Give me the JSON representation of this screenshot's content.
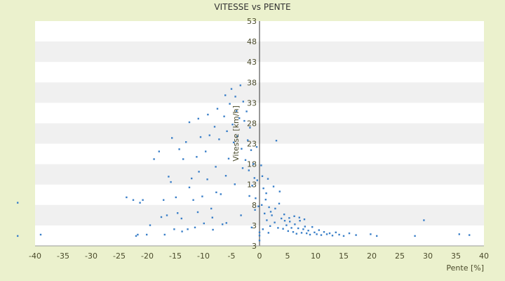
{
  "chart_data": {
    "type": "scatter",
    "title": "VITESSE vs PENTE",
    "xlabel": "Pente [%]",
    "ylabel": "Vitesse [km/h]",
    "xlim": [
      -40,
      40
    ],
    "ylim": [
      3,
      53
    ],
    "x_ticks": [
      "-40",
      "-35",
      "-30",
      "-25",
      "-20",
      "-15",
      "-10",
      "-5",
      "0",
      "5",
      "10",
      "15",
      "20",
      "25",
      "30",
      "35",
      "40"
    ],
    "y_ticks": [
      "53",
      "48",
      "43",
      "38",
      "33",
      "28",
      "23",
      "18",
      "13",
      "8",
      "3",
      "3"
    ],
    "grid": "alternating horizontal bands",
    "legend": "none",
    "colors": {
      "point": "#3a7fc8",
      "plot_bg": "#ffffff",
      "band": "#f0f0f0",
      "page_bg": "#ebf1cd"
    },
    "points": [
      [
        -43.1,
        12.6
      ],
      [
        -43.1,
        5.2
      ],
      [
        -39.0,
        5.5
      ],
      [
        -23.7,
        13.8
      ],
      [
        -22.5,
        13.2
      ],
      [
        -22.0,
        5.2
      ],
      [
        -21.7,
        5.5
      ],
      [
        -21.3,
        12.6
      ],
      [
        -20.8,
        13.2
      ],
      [
        -20.1,
        5.5
      ],
      [
        -19.5,
        7.6
      ],
      [
        -18.8,
        22.3
      ],
      [
        -17.9,
        24.0
      ],
      [
        -17.5,
        9.4
      ],
      [
        -17.1,
        13.2
      ],
      [
        -16.9,
        5.5
      ],
      [
        -16.5,
        9.8
      ],
      [
        -16.2,
        18.4
      ],
      [
        -15.8,
        17.2
      ],
      [
        -15.6,
        27.0
      ],
      [
        -15.2,
        6.7
      ],
      [
        -14.9,
        13.8
      ],
      [
        -14.6,
        10.3
      ],
      [
        -14.3,
        24.5
      ],
      [
        -13.8,
        6.2
      ],
      [
        -13.6,
        22.3
      ],
      [
        -13.1,
        26.1
      ],
      [
        -12.8,
        6.7
      ],
      [
        -12.5,
        30.5
      ],
      [
        -12.1,
        18.0
      ],
      [
        -11.8,
        13.2
      ],
      [
        -11.5,
        7.1
      ],
      [
        -11.2,
        22.8
      ],
      [
        -10.9,
        31.3
      ],
      [
        -10.5,
        27.2
      ],
      [
        -10.2,
        14.0
      ],
      [
        -9.9,
        8.0
      ],
      [
        -9.6,
        24.0
      ],
      [
        -9.2,
        32.2
      ],
      [
        -8.9,
        27.6
      ],
      [
        -8.6,
        11.3
      ],
      [
        -8.3,
        6.6
      ],
      [
        -8.0,
        29.5
      ],
      [
        -7.8,
        20.6
      ],
      [
        -7.5,
        33.5
      ],
      [
        -7.2,
        26.7
      ],
      [
        -6.9,
        14.5
      ],
      [
        -6.6,
        7.8
      ],
      [
        -6.3,
        31.8
      ],
      [
        -6.1,
        36.5
      ],
      [
        -5.8,
        28.5
      ],
      [
        -5.5,
        22.4
      ],
      [
        -5.3,
        34.6
      ],
      [
        -5.0,
        37.9
      ],
      [
        -4.8,
        30.0
      ],
      [
        -4.6,
        26.0
      ],
      [
        -4.3,
        36.2
      ],
      [
        -4.1,
        33.0
      ],
      [
        -3.9,
        27.4
      ],
      [
        -3.6,
        31.4
      ],
      [
        -3.4,
        38.7
      ],
      [
        -3.2,
        24.6
      ],
      [
        -2.9,
        35.1
      ],
      [
        -2.7,
        30.8
      ],
      [
        -2.5,
        22.1
      ],
      [
        -2.3,
        32.9
      ],
      [
        -2.1,
        26.5
      ],
      [
        -1.9,
        19.8
      ],
      [
        -1.7,
        29.3
      ],
      [
        -1.5,
        24.3
      ],
      [
        -1.3,
        16.4
      ],
      [
        -1.1,
        21.2
      ],
      [
        -0.9,
        18.1
      ],
      [
        -0.7,
        13.6
      ],
      [
        -0.5,
        25.0
      ],
      [
        -0.4,
        17.6
      ],
      [
        -0.2,
        11.8
      ],
      [
        0.0,
        5.3
      ],
      [
        0.0,
        4.2
      ],
      [
        0.0,
        6.0
      ],
      [
        0.3,
        20.9
      ],
      [
        0.5,
        18.5
      ],
      [
        0.7,
        15.8
      ],
      [
        0.9,
        10.2
      ],
      [
        1.1,
        13.3
      ],
      [
        1.3,
        8.7
      ],
      [
        1.5,
        17.9
      ],
      [
        1.7,
        11.6
      ],
      [
        1.9,
        7.4
      ],
      [
        2.2,
        9.8
      ],
      [
        2.5,
        16.2
      ],
      [
        2.7,
        8.2
      ],
      [
        3.0,
        26.4
      ],
      [
        3.3,
        7.0
      ],
      [
        3.6,
        15.1
      ],
      [
        3.9,
        9.1
      ],
      [
        4.2,
        6.8
      ],
      [
        4.5,
        8.6
      ],
      [
        4.8,
        7.6
      ],
      [
        5.1,
        6.3
      ],
      [
        5.4,
        8.4
      ],
      [
        5.7,
        7.0
      ],
      [
        6.0,
        6.1
      ],
      [
        6.3,
        7.8
      ],
      [
        6.6,
        5.7
      ],
      [
        6.9,
        6.9
      ],
      [
        7.2,
        8.6
      ],
      [
        7.5,
        5.9
      ],
      [
        7.8,
        6.7
      ],
      [
        8.1,
        7.3
      ],
      [
        8.4,
        5.8
      ],
      [
        8.7,
        6.4
      ],
      [
        9.0,
        5.5
      ],
      [
        9.4,
        7.2
      ],
      [
        9.8,
        6.0
      ],
      [
        10.2,
        5.6
      ],
      [
        10.6,
        6.5
      ],
      [
        11.0,
        5.4
      ],
      [
        11.5,
        6.1
      ],
      [
        12.0,
        5.6
      ],
      [
        12.5,
        5.8
      ],
      [
        13.0,
        5.3
      ],
      [
        13.6,
        6.0
      ],
      [
        14.2,
        5.5
      ],
      [
        15.0,
        5.2
      ],
      [
        16.0,
        5.8
      ],
      [
        17.2,
        5.4
      ],
      [
        19.8,
        5.6
      ],
      [
        20.9,
        5.2
      ],
      [
        27.7,
        5.2
      ],
      [
        29.3,
        8.7
      ],
      [
        35.6,
        5.6
      ],
      [
        37.4,
        5.4
      ],
      [
        -12.5,
        16.0
      ],
      [
        -10.8,
        19.5
      ],
      [
        -9.3,
        17.8
      ],
      [
        -7.7,
        14.9
      ],
      [
        -6.0,
        18.6
      ],
      [
        -4.4,
        16.7
      ],
      [
        -3.0,
        20.3
      ],
      [
        -1.8,
        14.1
      ],
      [
        -0.8,
        11.0
      ],
      [
        0.4,
        12.1
      ],
      [
        1.2,
        14.7
      ],
      [
        2.0,
        10.6
      ],
      [
        2.8,
        11.3
      ],
      [
        3.5,
        12.4
      ],
      [
        4.4,
        10.0
      ],
      [
        5.3,
        9.2
      ],
      [
        6.2,
        9.6
      ],
      [
        7.1,
        9.3
      ],
      [
        8.0,
        8.9
      ],
      [
        -13.9,
        9.1
      ],
      [
        -11.0,
        10.5
      ],
      [
        -8.4,
        9.3
      ],
      [
        -5.9,
        8.1
      ],
      [
        -3.3,
        9.8
      ],
      [
        -1.4,
        7.1
      ],
      [
        0.6,
        6.7
      ],
      [
        1.6,
        5.9
      ]
    ]
  }
}
